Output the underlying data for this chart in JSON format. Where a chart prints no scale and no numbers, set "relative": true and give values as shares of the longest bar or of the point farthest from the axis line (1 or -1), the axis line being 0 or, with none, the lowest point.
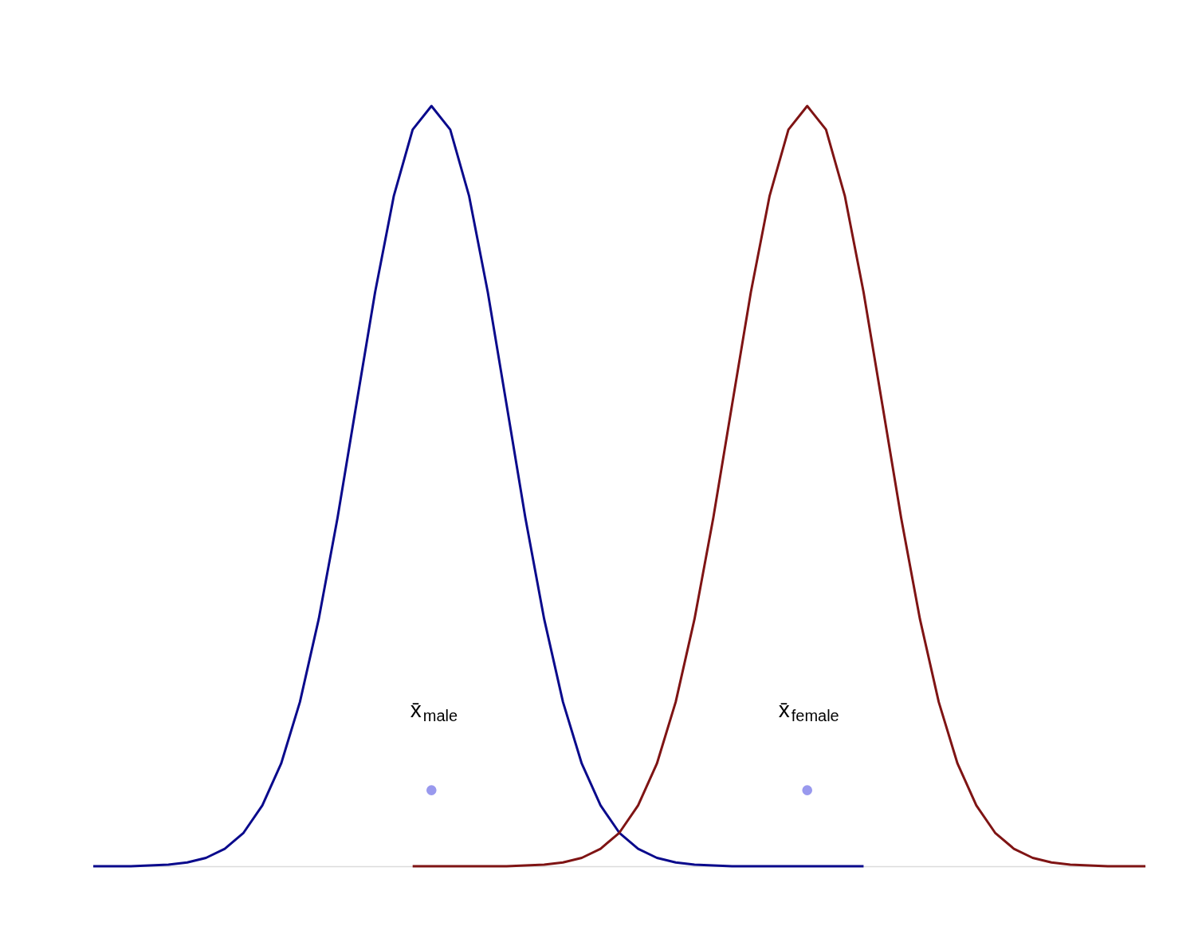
{
  "chart_data": {
    "type": "line",
    "relative": true,
    "categories": [
      null,
      null,
      null,
      null,
      null,
      null,
      null,
      null,
      null,
      null,
      null,
      null,
      null,
      null,
      null,
      null,
      null,
      null,
      null,
      null,
      null,
      null,
      null,
      null,
      null,
      null,
      null,
      null,
      null,
      null,
      null,
      null,
      null,
      null,
      null,
      null,
      null,
      null,
      null,
      null,
      null,
      null,
      null,
      null,
      null,
      null,
      null,
      null,
      null,
      null,
      null,
      null,
      null,
      null,
      null,
      null,
      null
    ],
    "series": [
      {
        "color": "#0a0a8c",
        "values": [
          0,
          0,
          0,
          0.001,
          0.002,
          0.005,
          0.011,
          0.023,
          0.044,
          0.08,
          0.135,
          0.216,
          0.325,
          0.458,
          0.607,
          0.755,
          0.882,
          0.969,
          1,
          0.969,
          0.882,
          0.755,
          0.607,
          0.458,
          0.325,
          0.216,
          0.135,
          0.08,
          0.044,
          0.023,
          0.011,
          0.005,
          0.002,
          0.001,
          0,
          0,
          0,
          0,
          0,
          0,
          0,
          0,
          null,
          null,
          null,
          null,
          null,
          null,
          null,
          null,
          null,
          null,
          null,
          null,
          null,
          null,
          null
        ]
      },
      {
        "color": "#7f1414",
        "values": [
          null,
          null,
          null,
          null,
          null,
          null,
          null,
          null,
          null,
          null,
          null,
          null,
          null,
          null,
          null,
          null,
          null,
          0,
          0,
          0,
          0,
          0,
          0,
          0.001,
          0.002,
          0.005,
          0.011,
          0.023,
          0.044,
          0.08,
          0.135,
          0.216,
          0.325,
          0.458,
          0.607,
          0.755,
          0.882,
          0.969,
          1,
          0.969,
          0.882,
          0.755,
          0.607,
          0.458,
          0.325,
          0.216,
          0.135,
          0.08,
          0.044,
          0.023,
          0.011,
          0.005,
          0.002,
          0.001,
          0,
          0,
          0
        ]
      }
    ],
    "annotations": [
      "x̄$_{male}$",
      "x̄$_{female}$"
    ]
  }
}
